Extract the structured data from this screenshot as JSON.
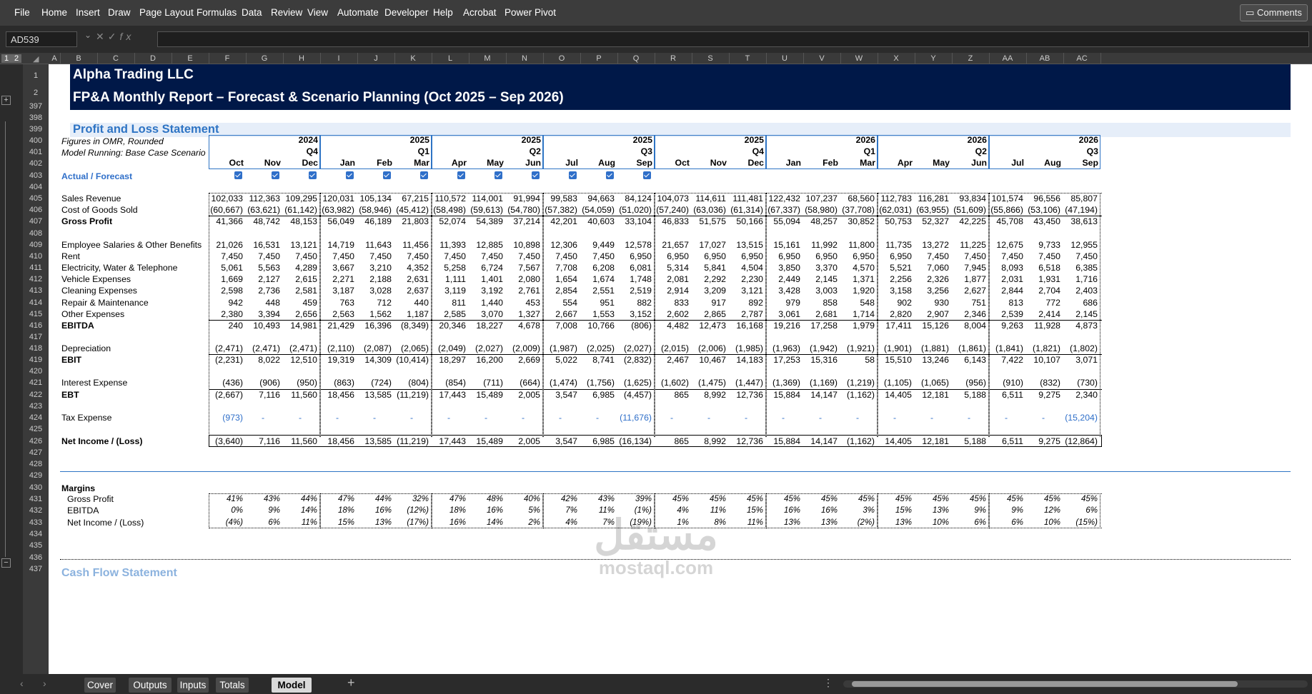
{
  "ribbon": {
    "tabs": [
      "File",
      "Home",
      "Insert",
      "Draw",
      "Page Layout",
      "Formulas",
      "Data",
      "Review",
      "View",
      "Automate",
      "Developer",
      "Help",
      "Acrobat",
      "Power Pivot"
    ],
    "comments": "Comments"
  },
  "formula_bar": {
    "name_box": "AD539",
    "formula": ""
  },
  "columns": [
    "A",
    "B",
    "C",
    "D",
    "E",
    "F",
    "G",
    "H",
    "I",
    "J",
    "K",
    "L",
    "M",
    "N",
    "O",
    "P",
    "Q",
    "R",
    "S",
    "T",
    "U",
    "V",
    "W",
    "X",
    "Y",
    "Z",
    "AA",
    "AB",
    "AC"
  ],
  "outline_levels": [
    "1",
    "2"
  ],
  "row_numbers": [
    "1",
    "2",
    "397",
    "398",
    "399",
    "400",
    "401",
    "402",
    "403",
    "404",
    "405",
    "406",
    "407",
    "408",
    "409",
    "410",
    "411",
    "412",
    "413",
    "414",
    "415",
    "416",
    "417",
    "418",
    "419",
    "420",
    "421",
    "422",
    "423",
    "424",
    "425",
    "426",
    "427",
    "428",
    "429",
    "430",
    "431",
    "432",
    "433",
    "434",
    "435",
    "436",
    "437"
  ],
  "title": "Alpha Trading LLC",
  "subtitle": "FP&A Monthly Report – Forecast & Scenario Planning (Oct 2025 – Sep 2026)",
  "section_title": "Profit and Loss Statement",
  "figures_note": "Figures in OMR, Rounded",
  "model_note": "Model Running: Base Case Scenario",
  "actual_forecast_label": "Actual / Forecast",
  "quarters": [
    {
      "year": "2024",
      "q": "Q4",
      "months": [
        "Oct",
        "Nov",
        "Dec"
      ]
    },
    {
      "year": "2025",
      "q": "Q1",
      "months": [
        "Jan",
        "Feb",
        "Mar"
      ]
    },
    {
      "year": "2025",
      "q": "Q2",
      "months": [
        "Apr",
        "May",
        "Jun"
      ]
    },
    {
      "year": "2025",
      "q": "Q3",
      "months": [
        "Jul",
        "Aug",
        "Sep"
      ]
    },
    {
      "year": "2025",
      "q": "Q4",
      "months": [
        "Oct",
        "Nov",
        "Dec"
      ]
    },
    {
      "year": "2026",
      "q": "Q1",
      "months": [
        "Jan",
        "Feb",
        "Mar"
      ]
    },
    {
      "year": "2026",
      "q": "Q2",
      "months": [
        "Apr",
        "May",
        "Jun"
      ]
    },
    {
      "year": "2026",
      "q": "Q3",
      "months": [
        "Jul",
        "Aug",
        "Sep"
      ]
    }
  ],
  "actual_flags_count": 12,
  "pl_rows": [
    {
      "label": "Sales Revenue",
      "values": [
        "102,033",
        "112,363",
        "109,295",
        "120,031",
        "105,134",
        "67,215",
        "110,572",
        "114,001",
        "91,994",
        "99,583",
        "94,663",
        "84,124",
        "104,073",
        "114,611",
        "111,481",
        "122,432",
        "107,237",
        "68,560",
        "112,783",
        "116,281",
        "93,834",
        "101,574",
        "96,556",
        "85,807"
      ]
    },
    {
      "label": "Cost of Goods Sold",
      "values": [
        "(60,667)",
        "(63,621)",
        "(61,142)",
        "(63,982)",
        "(58,946)",
        "(45,412)",
        "(58,498)",
        "(59,613)",
        "(54,780)",
        "(57,382)",
        "(54,059)",
        "(51,020)",
        "(57,240)",
        "(63,036)",
        "(61,314)",
        "(67,337)",
        "(58,980)",
        "(37,708)",
        "(62,031)",
        "(63,955)",
        "(51,609)",
        "(55,866)",
        "(53,106)",
        "(47,194)"
      ]
    },
    {
      "label": "Gross Profit",
      "values": [
        "41,366",
        "48,742",
        "48,153",
        "56,049",
        "46,189",
        "21,803",
        "52,074",
        "54,389",
        "37,214",
        "42,201",
        "40,603",
        "33,104",
        "46,833",
        "51,575",
        "50,166",
        "55,094",
        "48,257",
        "30,852",
        "50,753",
        "52,327",
        "42,225",
        "45,708",
        "43,450",
        "38,613"
      ]
    },
    {
      "label": "Employee Salaries & Other Benefits",
      "values": [
        "21,026",
        "16,531",
        "13,121",
        "14,719",
        "11,643",
        "11,456",
        "11,393",
        "12,885",
        "10,898",
        "12,306",
        "9,449",
        "12,578",
        "21,657",
        "17,027",
        "13,515",
        "15,161",
        "11,992",
        "11,800",
        "11,735",
        "13,272",
        "11,225",
        "12,675",
        "9,733",
        "12,955"
      ]
    },
    {
      "label": "Rent",
      "values": [
        "7,450",
        "7,450",
        "7,450",
        "7,450",
        "7,450",
        "7,450",
        "7,450",
        "7,450",
        "7,450",
        "7,450",
        "7,450",
        "6,950",
        "6,950",
        "6,950",
        "6,950",
        "6,950",
        "6,950",
        "6,950",
        "6,950",
        "7,450",
        "7,450",
        "7,450",
        "7,450",
        "7,450"
      ]
    },
    {
      "label": "Electricity, Water & Telephone",
      "values": [
        "5,061",
        "5,563",
        "4,289",
        "3,667",
        "3,210",
        "4,352",
        "5,258",
        "6,724",
        "7,567",
        "7,708",
        "6,208",
        "6,081",
        "5,314",
        "5,841",
        "4,504",
        "3,850",
        "3,370",
        "4,570",
        "5,521",
        "7,060",
        "7,945",
        "8,093",
        "6,518",
        "6,385"
      ]
    },
    {
      "label": "Vehicle Expenses",
      "values": [
        "1,669",
        "2,127",
        "2,615",
        "2,271",
        "2,188",
        "2,631",
        "1,111",
        "1,401",
        "2,080",
        "1,654",
        "1,674",
        "1,748",
        "2,081",
        "2,292",
        "2,230",
        "2,449",
        "2,145",
        "1,371",
        "2,256",
        "2,326",
        "1,877",
        "2,031",
        "1,931",
        "1,716"
      ]
    },
    {
      "label": "Cleaning Expenses",
      "values": [
        "2,598",
        "2,736",
        "2,581",
        "3,187",
        "3,028",
        "2,637",
        "3,119",
        "3,192",
        "2,761",
        "2,854",
        "2,551",
        "2,519",
        "2,914",
        "3,209",
        "3,121",
        "3,428",
        "3,003",
        "1,920",
        "3,158",
        "3,256",
        "2,627",
        "2,844",
        "2,704",
        "2,403"
      ]
    },
    {
      "label": "Repair & Maintenance",
      "values": [
        "942",
        "448",
        "459",
        "763",
        "712",
        "440",
        "811",
        "1,440",
        "453",
        "554",
        "951",
        "882",
        "833",
        "917",
        "892",
        "979",
        "858",
        "548",
        "902",
        "930",
        "751",
        "813",
        "772",
        "686"
      ]
    },
    {
      "label": "Other Expenses",
      "values": [
        "2,380",
        "3,394",
        "2,656",
        "2,563",
        "1,562",
        "1,187",
        "2,585",
        "3,070",
        "1,327",
        "2,667",
        "1,553",
        "3,152",
        "2,602",
        "2,865",
        "2,787",
        "3,061",
        "2,681",
        "1,714",
        "2,820",
        "2,907",
        "2,346",
        "2,539",
        "2,414",
        "2,145"
      ]
    },
    {
      "label": "EBITDA",
      "values": [
        "240",
        "10,493",
        "14,981",
        "21,429",
        "16,396",
        "(8,349)",
        "20,346",
        "18,227",
        "4,678",
        "7,008",
        "10,766",
        "(806)",
        "4,482",
        "12,473",
        "16,168",
        "19,216",
        "17,258",
        "1,979",
        "17,411",
        "15,126",
        "8,004",
        "9,263",
        "11,928",
        "4,873"
      ]
    },
    {
      "label": "Depreciation",
      "values": [
        "(2,471)",
        "(2,471)",
        "(2,471)",
        "(2,110)",
        "(2,087)",
        "(2,065)",
        "(2,049)",
        "(2,027)",
        "(2,009)",
        "(1,987)",
        "(2,025)",
        "(2,027)",
        "(2,015)",
        "(2,006)",
        "(1,985)",
        "(1,963)",
        "(1,942)",
        "(1,921)",
        "(1,901)",
        "(1,881)",
        "(1,861)",
        "(1,841)",
        "(1,821)",
        "(1,802)"
      ]
    },
    {
      "label": "EBIT",
      "values": [
        "(2,231)",
        "8,022",
        "12,510",
        "19,319",
        "14,309",
        "(10,414)",
        "18,297",
        "16,200",
        "2,669",
        "5,022",
        "8,741",
        "(2,832)",
        "2,467",
        "10,467",
        "14,183",
        "17,253",
        "15,316",
        "58",
        "15,510",
        "13,246",
        "6,143",
        "7,422",
        "10,107",
        "3,071"
      ]
    },
    {
      "label": "Interest Expense",
      "values": [
        "(436)",
        "(906)",
        "(950)",
        "(863)",
        "(724)",
        "(804)",
        "(854)",
        "(711)",
        "(664)",
        "(1,474)",
        "(1,756)",
        "(1,625)",
        "(1,602)",
        "(1,475)",
        "(1,447)",
        "(1,369)",
        "(1,169)",
        "(1,219)",
        "(1,105)",
        "(1,065)",
        "(956)",
        "(910)",
        "(832)",
        "(730)"
      ]
    },
    {
      "label": "EBT",
      "values": [
        "(2,667)",
        "7,116",
        "11,560",
        "18,456",
        "13,585",
        "(11,219)",
        "17,443",
        "15,489",
        "2,005",
        "3,547",
        "6,985",
        "(4,457)",
        "865",
        "8,992",
        "12,736",
        "15,884",
        "14,147",
        "(1,162)",
        "14,405",
        "12,181",
        "5,188",
        "6,511",
        "9,275",
        "2,340"
      ]
    },
    {
      "label": "Tax Expense",
      "values": [
        "(973)",
        "-",
        "-",
        "-",
        "-",
        "-",
        "-",
        "-",
        "-",
        "-",
        "-",
        "(11,676)",
        "-",
        "-",
        "-",
        "-",
        "-",
        "-",
        "-",
        "-",
        "-",
        "-",
        "-",
        "(15,204)"
      ]
    },
    {
      "label": "Net Income / (Loss)",
      "values": [
        "(3,640)",
        "7,116",
        "11,560",
        "18,456",
        "13,585",
        "(11,219)",
        "17,443",
        "15,489",
        "2,005",
        "3,547",
        "6,985",
        "(16,134)",
        "865",
        "8,992",
        "12,736",
        "15,884",
        "14,147",
        "(1,162)",
        "14,405",
        "12,181",
        "5,188",
        "6,511",
        "9,275",
        "(12,864)"
      ]
    }
  ],
  "margins_title": "Margins",
  "margin_rows": [
    {
      "label": "Gross Profit",
      "values": [
        "41%",
        "43%",
        "44%",
        "47%",
        "44%",
        "32%",
        "47%",
        "48%",
        "40%",
        "42%",
        "43%",
        "39%",
        "45%",
        "45%",
        "45%",
        "45%",
        "45%",
        "45%",
        "45%",
        "45%",
        "45%",
        "45%",
        "45%",
        "45%"
      ]
    },
    {
      "label": "EBITDA",
      "values": [
        "0%",
        "9%",
        "14%",
        "18%",
        "16%",
        "(12%)",
        "18%",
        "16%",
        "5%",
        "7%",
        "11%",
        "(1%)",
        "4%",
        "11%",
        "15%",
        "16%",
        "16%",
        "3%",
        "15%",
        "13%",
        "9%",
        "9%",
        "12%",
        "6%"
      ]
    },
    {
      "label": "Net Income / (Loss)",
      "values": [
        "(4%)",
        "6%",
        "11%",
        "15%",
        "13%",
        "(17%)",
        "16%",
        "14%",
        "2%",
        "4%",
        "7%",
        "(19%)",
        "1%",
        "8%",
        "11%",
        "13%",
        "13%",
        "(2%)",
        "13%",
        "10%",
        "6%",
        "6%",
        "10%",
        "(15%)"
      ]
    }
  ],
  "next_section": "Cash Flow Statement",
  "watermark": {
    "arabic": "مستقل",
    "latin": "mostaql.com"
  },
  "sheet_tabs": [
    "Cover",
    "Outputs",
    "Inputs",
    "Totals",
    "Model"
  ],
  "active_tab": "Model",
  "colors": {
    "header_band": "#001848",
    "accent_blue": "#2e74c4",
    "input_blue": "#2f6fc9"
  }
}
